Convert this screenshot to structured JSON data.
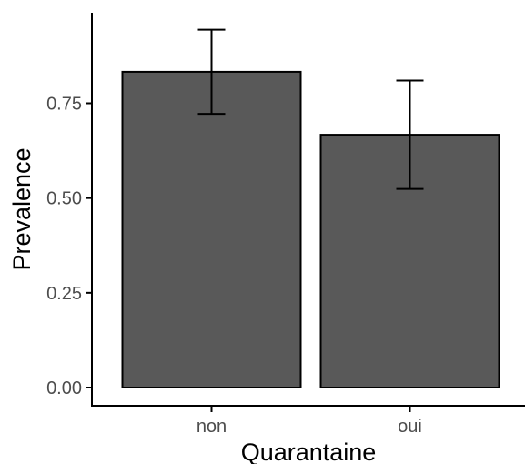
{
  "chart_data": {
    "type": "bar",
    "title": "",
    "xlabel": "Quarantaine",
    "ylabel": "Prevalence",
    "categories": [
      "non",
      "oui"
    ],
    "values": [
      0.833,
      0.667
    ],
    "error_lower": [
      0.722,
      0.524
    ],
    "error_upper": [
      0.944,
      0.81
    ],
    "ylim": [
      0,
      0.93
    ],
    "yticks": [
      0.0,
      0.25,
      0.5,
      0.75
    ],
    "ytick_labels": [
      "0.00",
      "0.25",
      "0.50",
      "0.75"
    ],
    "grid": false,
    "legend": "none",
    "colors": {
      "bar_fill": "#595959",
      "bar_stroke": "#000000",
      "axis": "#000000",
      "tick_text": "#4d4d4d"
    }
  }
}
